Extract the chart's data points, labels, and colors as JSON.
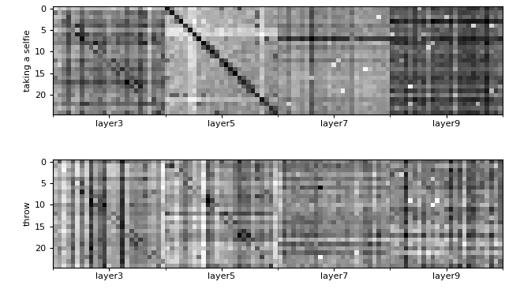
{
  "yticks": [
    0,
    5,
    10,
    15,
    20
  ],
  "xtick_labels": [
    "layer3",
    "layer5",
    "layer7",
    "layer9"
  ],
  "row_labels": [
    "taking a selfie",
    "throw"
  ],
  "n_joints": 25,
  "n_layers": 4,
  "figsize": [
    6.4,
    3.66
  ],
  "dpi": 100,
  "cmap": "gray"
}
